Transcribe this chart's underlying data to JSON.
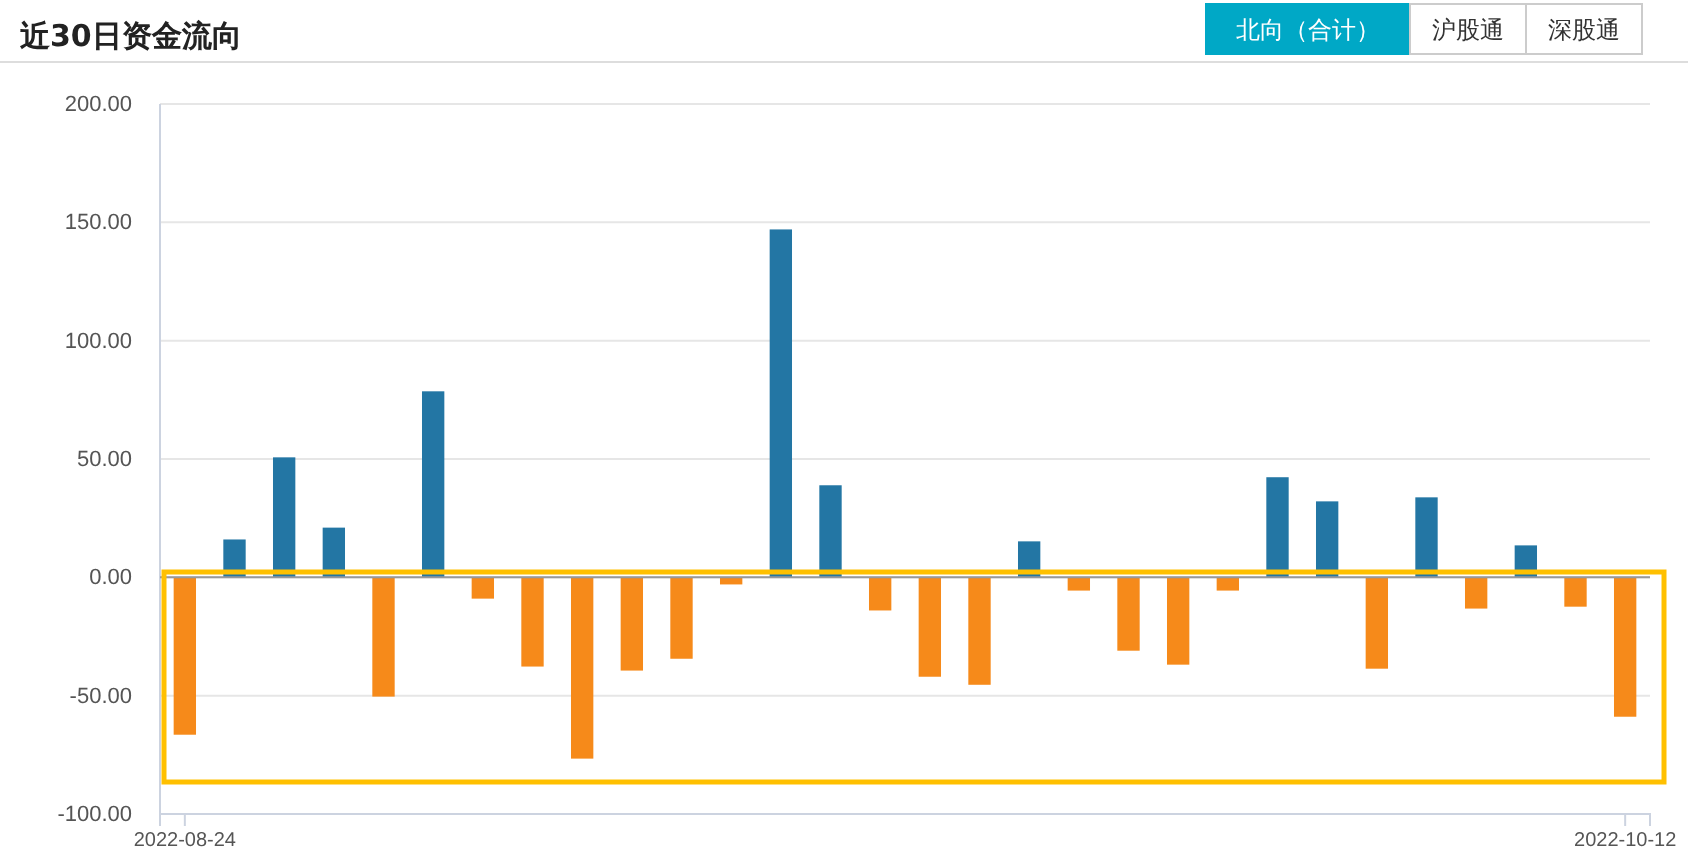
{
  "chart_data": {
    "type": "bar",
    "title": "近30日资金流向",
    "annotations": [
      "北向（合计）",
      "沪股通",
      "深股通"
    ],
    "categories": [
      "2022-08-24",
      null,
      null,
      null,
      null,
      null,
      null,
      null,
      null,
      null,
      null,
      null,
      null,
      null,
      null,
      null,
      null,
      null,
      null,
      null,
      null,
      null,
      null,
      null,
      null,
      null,
      null,
      null,
      null,
      "2022-10-12"
    ],
    "values": [
      -66.5,
      16,
      50.7,
      21,
      -50.4,
      78.6,
      -9,
      -37.7,
      -76.6,
      -39.4,
      -34.4,
      -3,
      147,
      38.9,
      -14,
      -42,
      -45.4,
      15.2,
      -5.6,
      -31,
      -36.9,
      -5.6,
      42.3,
      32.1,
      -38.6,
      33.8,
      -13.2,
      13.5,
      -12.4,
      -58.9
    ],
    "colors": [
      "#f68a1a",
      "#2376a4",
      "#2376a4",
      "#2376a4",
      "#f68a1a",
      "#2376a4",
      "#f68a1a",
      "#f68a1a",
      "#f68a1a",
      "#f68a1a",
      "#f68a1a",
      "#f68a1a",
      "#2376a4",
      "#2376a4",
      "#f68a1a",
      "#f68a1a",
      "#f68a1a",
      "#2376a4",
      "#f68a1a",
      "#f68a1a",
      "#f68a1a",
      "#f68a1a",
      "#2376a4",
      "#2376a4",
      "#f68a1a",
      "#2376a4",
      "#f68a1a",
      "#2376a4",
      "#f68a1a",
      "#f68a1a"
    ],
    "ylim": [
      -100,
      200
    ],
    "yticks": [
      {
        "value": -100,
        "label": "-100.00"
      },
      {
        "value": -50,
        "label": "-50.00"
      },
      {
        "value": 0,
        "label": "0.00"
      },
      {
        "value": 50,
        "label": "50.00"
      },
      {
        "value": 100,
        "label": "100.00"
      },
      {
        "value": 150,
        "label": "150.00"
      },
      {
        "value": 200,
        "label": "200.00"
      }
    ],
    "grid": "y"
  }
}
